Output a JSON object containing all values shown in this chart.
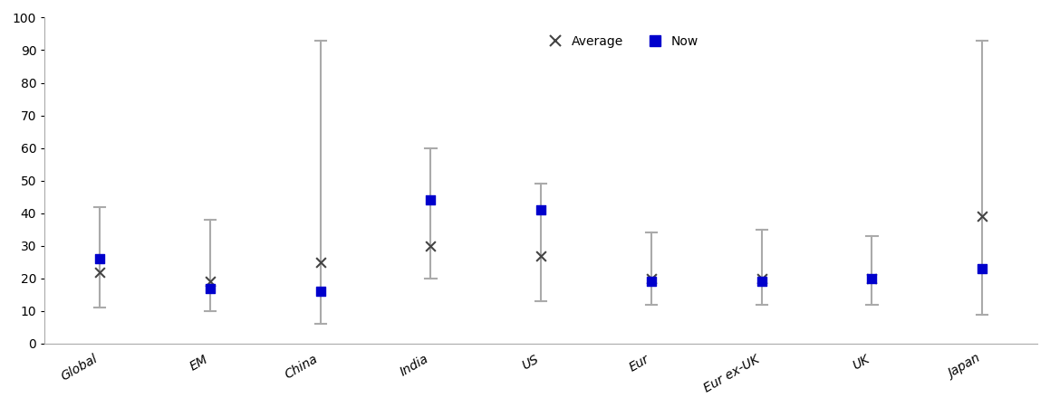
{
  "categories": [
    "Global",
    "EM",
    "China",
    "India",
    "US",
    "Eur",
    "Eur ex-UK",
    "UK",
    "Japan"
  ],
  "range_min": [
    11,
    10,
    6,
    20,
    13,
    12,
    12,
    12,
    9
  ],
  "range_max": [
    42,
    38,
    93,
    60,
    49,
    34,
    35,
    33,
    93
  ],
  "average": [
    22,
    19,
    25,
    30,
    27,
    20,
    20,
    20,
    39
  ],
  "now": [
    26,
    17,
    16,
    44,
    41,
    19,
    19,
    20,
    23
  ],
  "bar_color": "#aaaaaa",
  "now_color": "#0000cc",
  "avg_color": "#444444",
  "ylim": [
    0,
    100
  ],
  "yticks": [
    0,
    10,
    20,
    30,
    40,
    50,
    60,
    70,
    80,
    90,
    100
  ],
  "legend_avg_label": "Average",
  "legend_now_label": "Now",
  "title": ""
}
